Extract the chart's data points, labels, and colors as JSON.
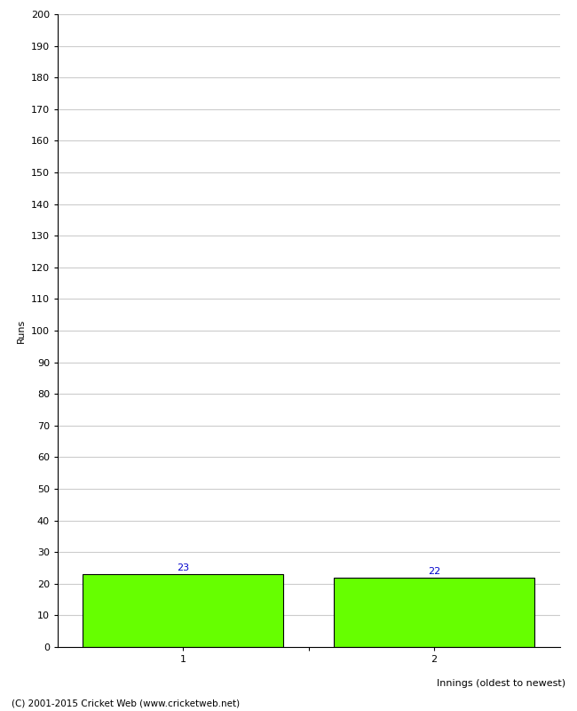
{
  "categories": [
    "1",
    "2"
  ],
  "values": [
    23,
    22
  ],
  "bar_color": "#66ff00",
  "bar_edge_color": "#000000",
  "ylabel": "Runs",
  "xlabel": "Innings (oldest to newest)",
  "ylim": [
    0,
    200
  ],
  "yticks": [
    0,
    10,
    20,
    30,
    40,
    50,
    60,
    70,
    80,
    90,
    100,
    110,
    120,
    130,
    140,
    150,
    160,
    170,
    180,
    190,
    200
  ],
  "value_label_color": "#0000cc",
  "value_label_fontsize": 8,
  "footnote": "(C) 2001-2015 Cricket Web (www.cricketweb.net)",
  "background_color": "#ffffff",
  "grid_color": "#cccccc",
  "bar_width": 0.8,
  "tick_fontsize": 8,
  "label_fontsize": 8
}
